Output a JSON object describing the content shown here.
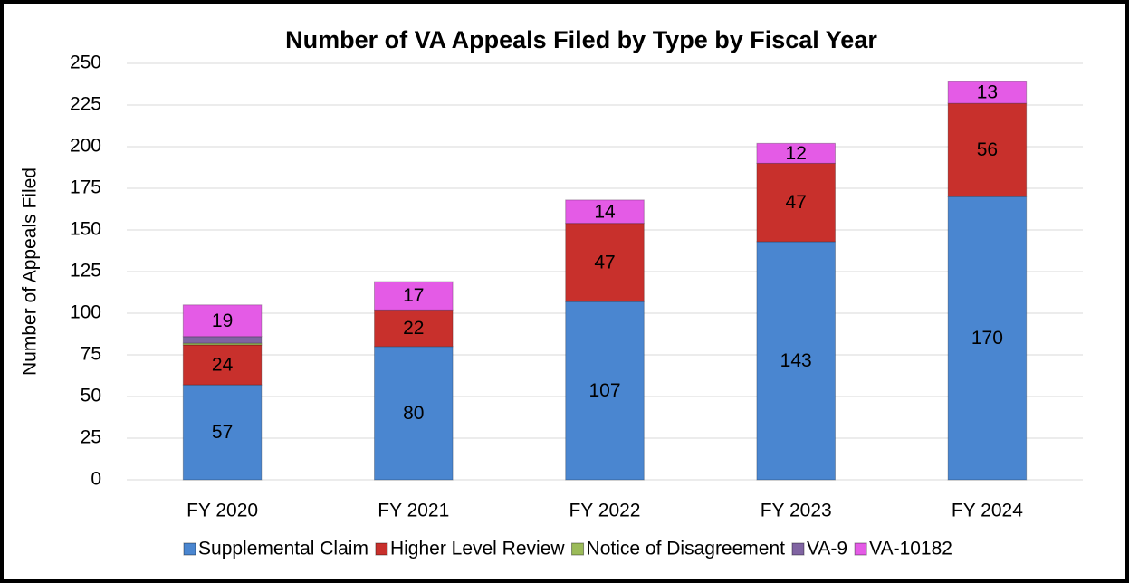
{
  "chart_data": {
    "type": "stacked_bar",
    "title": "Number of VA Appeals Filed by Type by Fiscal Year",
    "y_label": "Number of Appeals Filed",
    "categories": [
      "FY 2020",
      "FY 2021",
      "FY 2022",
      "FY 2023",
      "FY 2024"
    ],
    "series": [
      {
        "name": "Supplemental Claim",
        "color": "#4a86d0",
        "values": [
          57,
          80,
          107,
          143,
          170
        ],
        "data_labels": true
      },
      {
        "name": "Higher Level Review",
        "color": "#c8302c",
        "values": [
          24,
          22,
          47,
          47,
          56
        ],
        "data_labels": true
      },
      {
        "name": "Notice of Disagreement",
        "color": "#9bbb59",
        "values": [
          1,
          0,
          0,
          0,
          0
        ],
        "data_labels": false
      },
      {
        "name": "VA-9",
        "color": "#8064a2",
        "values": [
          4,
          0,
          0,
          0,
          0
        ],
        "data_labels": false
      },
      {
        "name": "VA-10182",
        "color": "#e45be6",
        "values": [
          19,
          17,
          14,
          12,
          13
        ],
        "data_labels": true
      }
    ],
    "ylim": [
      0,
      250
    ],
    "yticks": [
      0,
      25,
      50,
      75,
      100,
      125,
      150,
      175,
      200,
      225,
      250
    ],
    "grid": true,
    "legend": "bottom"
  }
}
